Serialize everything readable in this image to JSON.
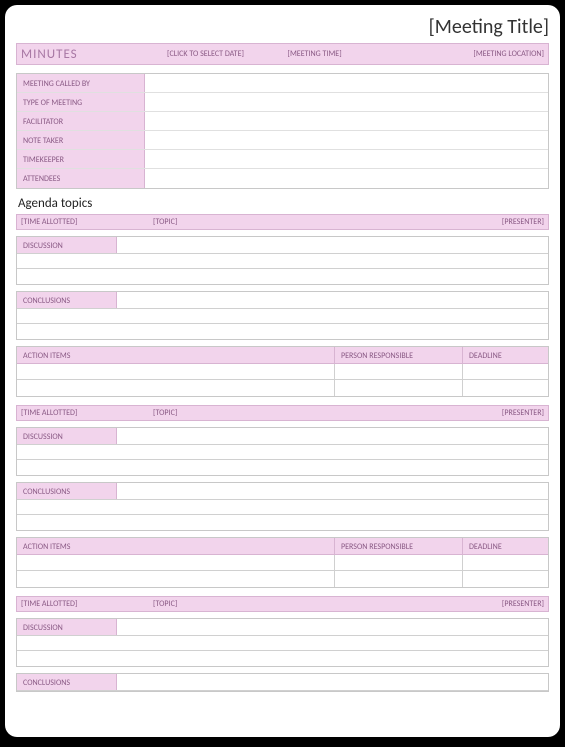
{
  "colors": {
    "accent_bg": "#f2d4ec",
    "accent_border": "#d8b4d2",
    "accent_text": "#8a5a85",
    "grid_border": "#c8c8c8",
    "row_border": "#d0d0d0",
    "page_bg": "#ffffff",
    "frame_bg": "#000000"
  },
  "typography": {
    "title_fontsize": 20,
    "bar_label_fontsize": 13,
    "small_label_fontsize": 8,
    "section_fontsize": 13
  },
  "header": {
    "title": "[Meeting Title]",
    "minutes_label": "MINUTES",
    "date": "[CLICK TO SELECT DATE]",
    "time": "[MEETING TIME]",
    "location": "[MEETING LOCATION]"
  },
  "info_rows": [
    "MEETING CALLED BY",
    "TYPE OF MEETING",
    "FACILITATOR",
    "NOTE TAKER",
    "TIMEKEEPER",
    "ATTENDEES"
  ],
  "agenda_title": "Agenda topics",
  "topic_bar": {
    "time": "[TIME ALLOTTED]",
    "topic": "[TOPIC]",
    "presenter": "[PRESENTER]"
  },
  "labels": {
    "discussion": "DISCUSSION",
    "conclusions": "CONCLUSIONS",
    "action_items": "ACTION ITEMS",
    "person": "PERSON RESPONSIBLE",
    "deadline": "DEADLINE"
  }
}
